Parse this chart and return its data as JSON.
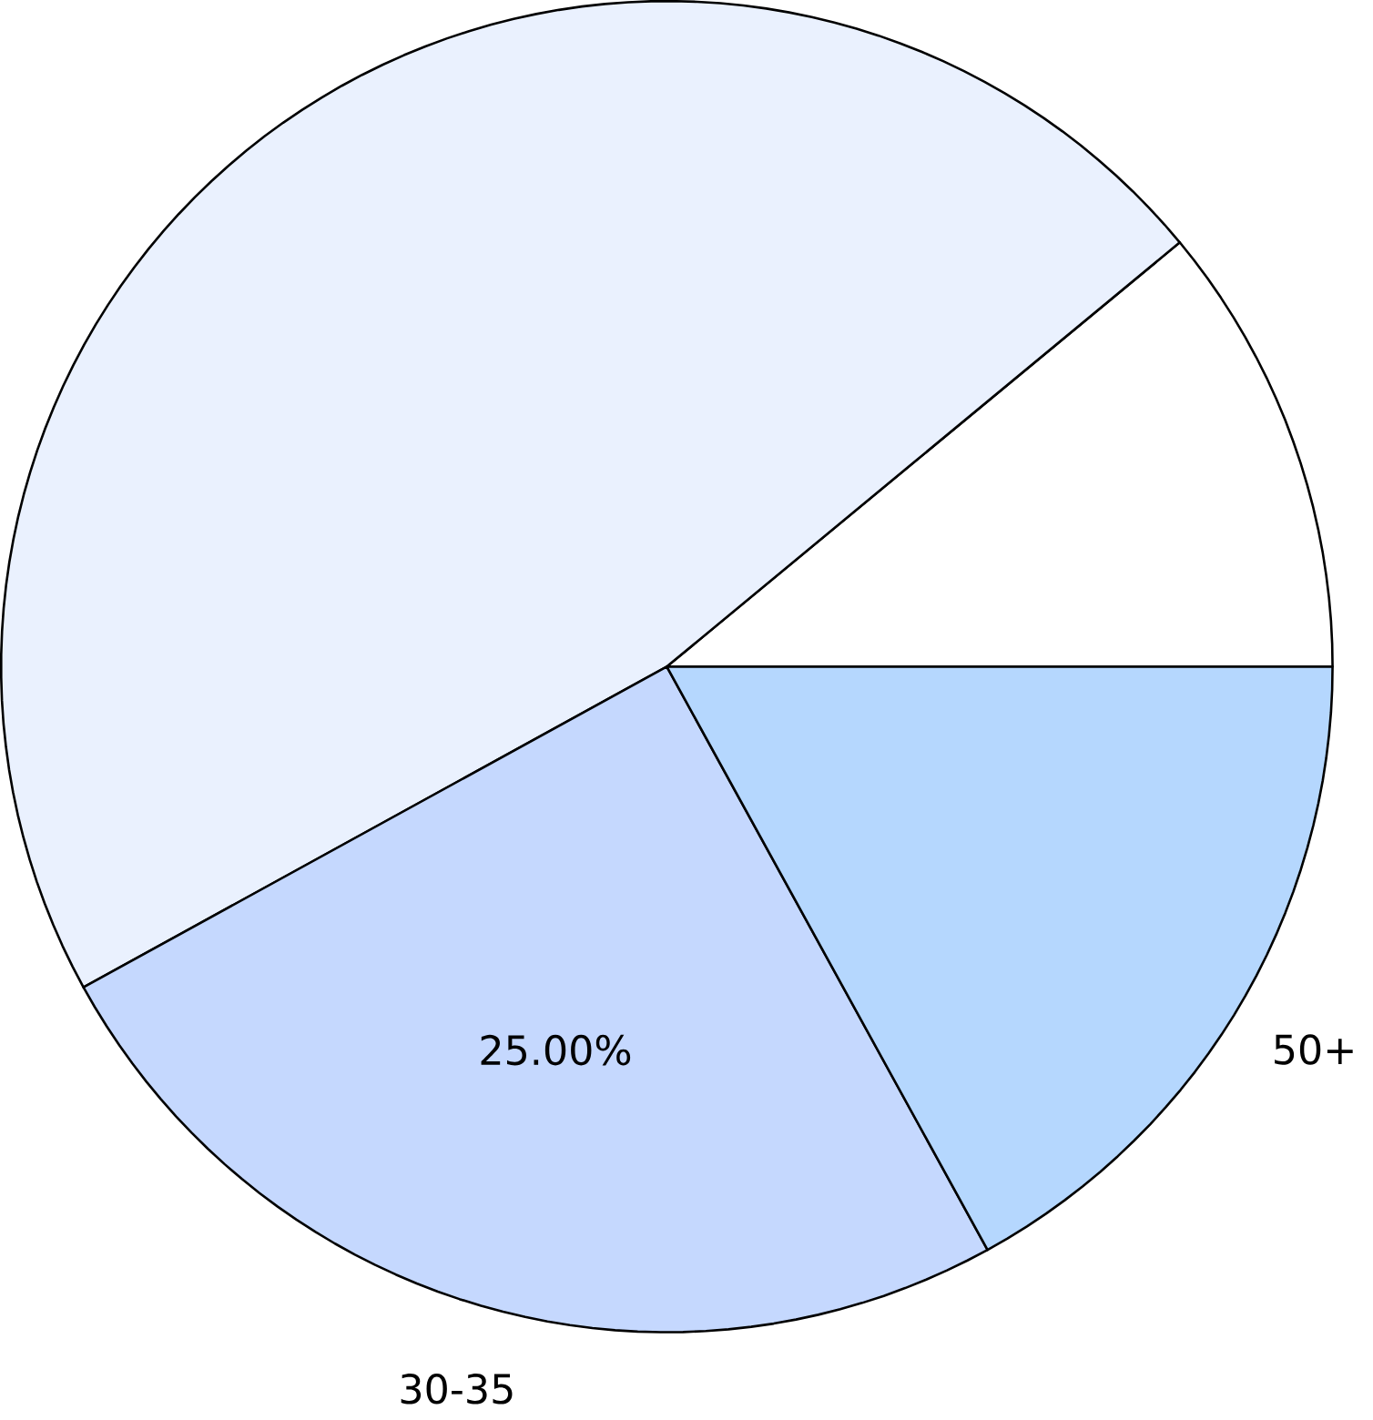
{
  "chart_data": {
    "type": "pie",
    "categories": [
      null,
      null,
      "30-35",
      "50+"
    ],
    "values": [
      11,
      47,
      25,
      17
    ],
    "colors": [
      "#ffffff",
      "#eaf1fe",
      "#c5d8fe",
      "#b5d7fe"
    ],
    "value_labels": [
      null,
      null,
      "25.00%",
      null
    ]
  }
}
